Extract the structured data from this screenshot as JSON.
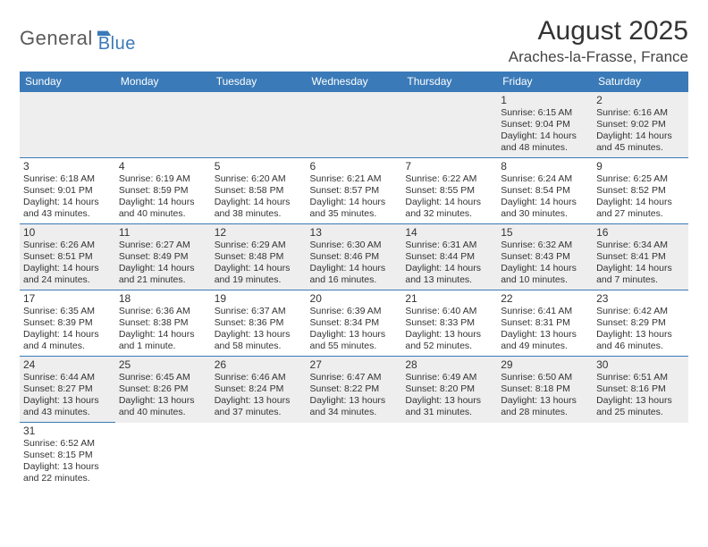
{
  "logo": {
    "part1": "General",
    "part2": "Blue"
  },
  "title": "August 2025",
  "location": "Araches-la-Frasse, France",
  "colors": {
    "header_bg": "#3a7ab8",
    "header_text": "#ffffff",
    "row_alt_bg": "#eeeeee",
    "border": "#3a7ab8",
    "logo_gray": "#5a5a5a",
    "logo_blue": "#3a7ab8"
  },
  "weekdays": [
    "Sunday",
    "Monday",
    "Tuesday",
    "Wednesday",
    "Thursday",
    "Friday",
    "Saturday"
  ],
  "weeks": [
    [
      null,
      null,
      null,
      null,
      null,
      {
        "n": "1",
        "sr": "Sunrise: 6:15 AM",
        "ss": "Sunset: 9:04 PM",
        "d1": "Daylight: 14 hours",
        "d2": "and 48 minutes."
      },
      {
        "n": "2",
        "sr": "Sunrise: 6:16 AM",
        "ss": "Sunset: 9:02 PM",
        "d1": "Daylight: 14 hours",
        "d2": "and 45 minutes."
      }
    ],
    [
      {
        "n": "3",
        "sr": "Sunrise: 6:18 AM",
        "ss": "Sunset: 9:01 PM",
        "d1": "Daylight: 14 hours",
        "d2": "and 43 minutes."
      },
      {
        "n": "4",
        "sr": "Sunrise: 6:19 AM",
        "ss": "Sunset: 8:59 PM",
        "d1": "Daylight: 14 hours",
        "d2": "and 40 minutes."
      },
      {
        "n": "5",
        "sr": "Sunrise: 6:20 AM",
        "ss": "Sunset: 8:58 PM",
        "d1": "Daylight: 14 hours",
        "d2": "and 38 minutes."
      },
      {
        "n": "6",
        "sr": "Sunrise: 6:21 AM",
        "ss": "Sunset: 8:57 PM",
        "d1": "Daylight: 14 hours",
        "d2": "and 35 minutes."
      },
      {
        "n": "7",
        "sr": "Sunrise: 6:22 AM",
        "ss": "Sunset: 8:55 PM",
        "d1": "Daylight: 14 hours",
        "d2": "and 32 minutes."
      },
      {
        "n": "8",
        "sr": "Sunrise: 6:24 AM",
        "ss": "Sunset: 8:54 PM",
        "d1": "Daylight: 14 hours",
        "d2": "and 30 minutes."
      },
      {
        "n": "9",
        "sr": "Sunrise: 6:25 AM",
        "ss": "Sunset: 8:52 PM",
        "d1": "Daylight: 14 hours",
        "d2": "and 27 minutes."
      }
    ],
    [
      {
        "n": "10",
        "sr": "Sunrise: 6:26 AM",
        "ss": "Sunset: 8:51 PM",
        "d1": "Daylight: 14 hours",
        "d2": "and 24 minutes."
      },
      {
        "n": "11",
        "sr": "Sunrise: 6:27 AM",
        "ss": "Sunset: 8:49 PM",
        "d1": "Daylight: 14 hours",
        "d2": "and 21 minutes."
      },
      {
        "n": "12",
        "sr": "Sunrise: 6:29 AM",
        "ss": "Sunset: 8:48 PM",
        "d1": "Daylight: 14 hours",
        "d2": "and 19 minutes."
      },
      {
        "n": "13",
        "sr": "Sunrise: 6:30 AM",
        "ss": "Sunset: 8:46 PM",
        "d1": "Daylight: 14 hours",
        "d2": "and 16 minutes."
      },
      {
        "n": "14",
        "sr": "Sunrise: 6:31 AM",
        "ss": "Sunset: 8:44 PM",
        "d1": "Daylight: 14 hours",
        "d2": "and 13 minutes."
      },
      {
        "n": "15",
        "sr": "Sunrise: 6:32 AM",
        "ss": "Sunset: 8:43 PM",
        "d1": "Daylight: 14 hours",
        "d2": "and 10 minutes."
      },
      {
        "n": "16",
        "sr": "Sunrise: 6:34 AM",
        "ss": "Sunset: 8:41 PM",
        "d1": "Daylight: 14 hours",
        "d2": "and 7 minutes."
      }
    ],
    [
      {
        "n": "17",
        "sr": "Sunrise: 6:35 AM",
        "ss": "Sunset: 8:39 PM",
        "d1": "Daylight: 14 hours",
        "d2": "and 4 minutes."
      },
      {
        "n": "18",
        "sr": "Sunrise: 6:36 AM",
        "ss": "Sunset: 8:38 PM",
        "d1": "Daylight: 14 hours",
        "d2": "and 1 minute."
      },
      {
        "n": "19",
        "sr": "Sunrise: 6:37 AM",
        "ss": "Sunset: 8:36 PM",
        "d1": "Daylight: 13 hours",
        "d2": "and 58 minutes."
      },
      {
        "n": "20",
        "sr": "Sunrise: 6:39 AM",
        "ss": "Sunset: 8:34 PM",
        "d1": "Daylight: 13 hours",
        "d2": "and 55 minutes."
      },
      {
        "n": "21",
        "sr": "Sunrise: 6:40 AM",
        "ss": "Sunset: 8:33 PM",
        "d1": "Daylight: 13 hours",
        "d2": "and 52 minutes."
      },
      {
        "n": "22",
        "sr": "Sunrise: 6:41 AM",
        "ss": "Sunset: 8:31 PM",
        "d1": "Daylight: 13 hours",
        "d2": "and 49 minutes."
      },
      {
        "n": "23",
        "sr": "Sunrise: 6:42 AM",
        "ss": "Sunset: 8:29 PM",
        "d1": "Daylight: 13 hours",
        "d2": "and 46 minutes."
      }
    ],
    [
      {
        "n": "24",
        "sr": "Sunrise: 6:44 AM",
        "ss": "Sunset: 8:27 PM",
        "d1": "Daylight: 13 hours",
        "d2": "and 43 minutes."
      },
      {
        "n": "25",
        "sr": "Sunrise: 6:45 AM",
        "ss": "Sunset: 8:26 PM",
        "d1": "Daylight: 13 hours",
        "d2": "and 40 minutes."
      },
      {
        "n": "26",
        "sr": "Sunrise: 6:46 AM",
        "ss": "Sunset: 8:24 PM",
        "d1": "Daylight: 13 hours",
        "d2": "and 37 minutes."
      },
      {
        "n": "27",
        "sr": "Sunrise: 6:47 AM",
        "ss": "Sunset: 8:22 PM",
        "d1": "Daylight: 13 hours",
        "d2": "and 34 minutes."
      },
      {
        "n": "28",
        "sr": "Sunrise: 6:49 AM",
        "ss": "Sunset: 8:20 PM",
        "d1": "Daylight: 13 hours",
        "d2": "and 31 minutes."
      },
      {
        "n": "29",
        "sr": "Sunrise: 6:50 AM",
        "ss": "Sunset: 8:18 PM",
        "d1": "Daylight: 13 hours",
        "d2": "and 28 minutes."
      },
      {
        "n": "30",
        "sr": "Sunrise: 6:51 AM",
        "ss": "Sunset: 8:16 PM",
        "d1": "Daylight: 13 hours",
        "d2": "and 25 minutes."
      }
    ],
    [
      {
        "n": "31",
        "sr": "Sunrise: 6:52 AM",
        "ss": "Sunset: 8:15 PM",
        "d1": "Daylight: 13 hours",
        "d2": "and 22 minutes."
      },
      null,
      null,
      null,
      null,
      null,
      null
    ]
  ]
}
